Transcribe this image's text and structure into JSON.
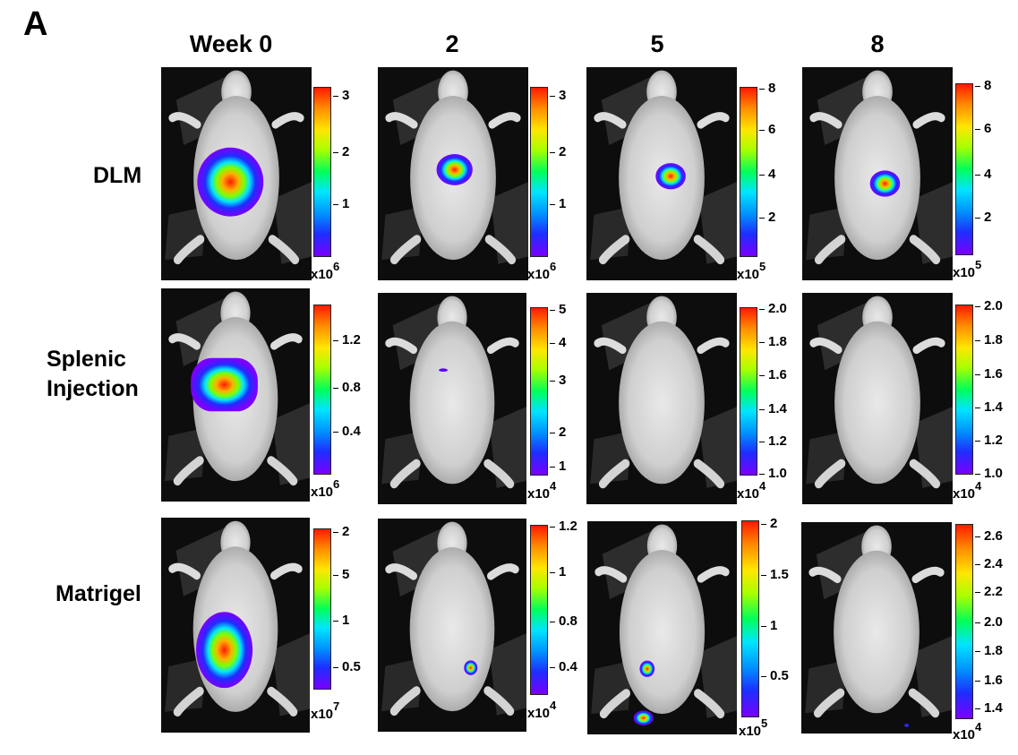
{
  "panel_label": "A",
  "columns": [
    "Week 0",
    "2",
    "5",
    "8"
  ],
  "rows": [
    {
      "label_lines": [
        "DLM"
      ]
    },
    {
      "label_lines": [
        "Splenic",
        "Injection"
      ]
    },
    {
      "label_lines": [
        "Matrigel"
      ]
    }
  ],
  "colorbar_colors": [
    "#7b00ff",
    "#1e2dff",
    "#0091ff",
    "#00e5ff",
    "#00ff5a",
    "#a8ff00",
    "#ffe600",
    "#ff8a00",
    "#ff1a00"
  ],
  "scales": [
    [
      {
        "ticks": [
          "3",
          "2",
          "1"
        ],
        "multiplier": "x10",
        "exponent": "6"
      },
      {
        "ticks": [
          "3",
          "2",
          "1"
        ],
        "multiplier": "x10",
        "exponent": "6"
      },
      {
        "ticks": [
          "8",
          "6",
          "4",
          "2"
        ],
        "multiplier": "x10",
        "exponent": "5"
      },
      {
        "ticks": [
          "8",
          "6",
          "4",
          "2"
        ],
        "multiplier": "x10",
        "exponent": "5"
      }
    ],
    [
      {
        "ticks": [
          "1.2",
          "0.8",
          "0.4"
        ],
        "multiplier": "x10",
        "exponent": "6"
      },
      {
        "ticks": [
          "5",
          "4",
          "3",
          "2",
          "1"
        ],
        "multiplier": "x10",
        "exponent": "4"
      },
      {
        "ticks": [
          "2.0",
          "1.8",
          "1.6",
          "1.4",
          "1.2",
          "1.0"
        ],
        "multiplier": "x10",
        "exponent": "4"
      },
      {
        "ticks": [
          "2.0",
          "1.8",
          "1.6",
          "1.4",
          "1.2",
          "1.0"
        ],
        "multiplier": "x10",
        "exponent": "4"
      }
    ],
    [
      {
        "ticks": [
          "2",
          "5",
          "1",
          "0.5"
        ],
        "multiplier": "x10",
        "exponent": "7"
      },
      {
        "ticks": [
          "1.2",
          "1",
          "0.8",
          "0.4"
        ],
        "multiplier": "x10",
        "exponent": "4"
      },
      {
        "ticks": [
          "2",
          "1.5",
          "1",
          "0.5"
        ],
        "multiplier": "x10",
        "exponent": "5"
      },
      {
        "ticks": [
          "2.6",
          "2.4",
          "2.2",
          "2.0",
          "1.8",
          "1.6",
          "1.4"
        ],
        "multiplier": "x10",
        "exponent": "4"
      }
    ]
  ]
}
